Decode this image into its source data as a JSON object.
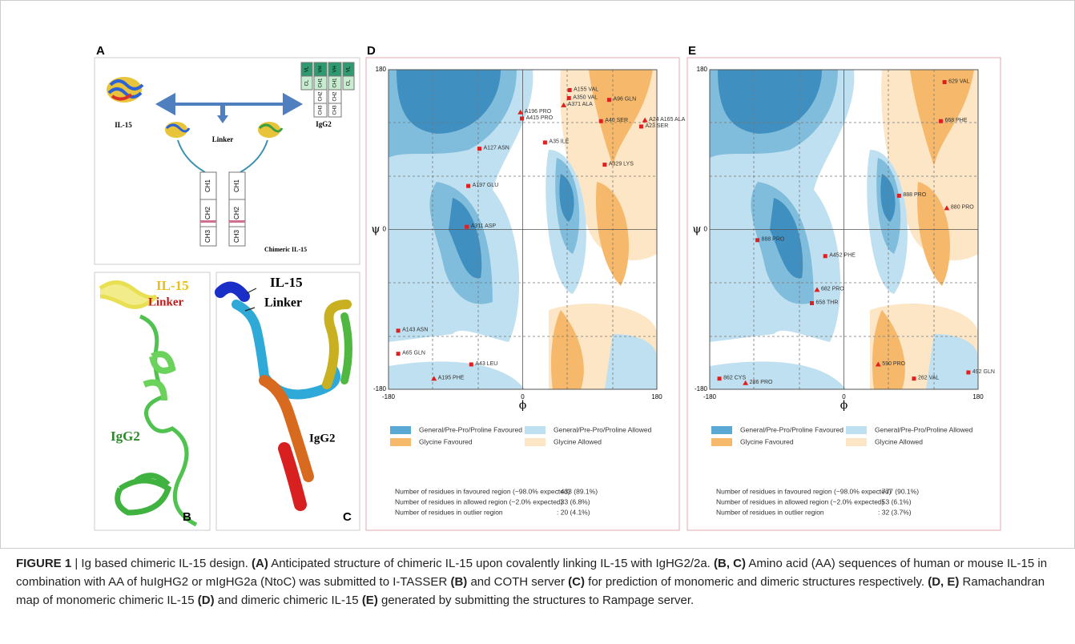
{
  "panel_a": {
    "letter": "A",
    "il15": "IL-15",
    "igg2": "IgG2",
    "linker": "Linker",
    "chimeric": "Chimeric IL-15",
    "chimeric_domains": [
      "CH1",
      "CH2",
      "CH3"
    ],
    "igg2_heavy": [
      "VH",
      "CH1",
      "CH2",
      "CH3"
    ],
    "igg2_light": [
      "VL",
      "CL"
    ]
  },
  "panel_b": {
    "letter": "B",
    "il15": "IL-15",
    "linker": "Linker",
    "igg2": "IgG2"
  },
  "panel_c": {
    "letter": "C",
    "il15": "IL-15",
    "linker": "Linker",
    "igg2": "IgG2"
  },
  "plots": [
    {
      "letter": "D",
      "psi_label": "ψ",
      "phi_label": "ϕ",
      "ticks": [
        -180,
        0,
        180
      ],
      "outliers": [
        {
          "label": "A155 VAL",
          "phi": 63,
          "psi": 157,
          "marker": "square"
        },
        {
          "label": "A350 VAL",
          "phi": 62,
          "psi": 148,
          "marker": "square"
        },
        {
          "label": "A96 GLN",
          "phi": 116,
          "psi": 146,
          "marker": "square"
        },
        {
          "label": "A371 ALA",
          "phi": 55,
          "psi": 140,
          "marker": "triangle"
        },
        {
          "label": "A196 PRO",
          "phi": -3,
          "psi": 132,
          "marker": "triangle"
        },
        {
          "label": "A415 PRO",
          "phi": -1,
          "psi": 125,
          "marker": "square"
        },
        {
          "label": "A40 SER",
          "phi": 105,
          "psi": 122,
          "marker": "square"
        },
        {
          "label": "A24 A165 ALA",
          "phi": 164,
          "psi": 123,
          "marker": "triangle"
        },
        {
          "label": "A23 SER",
          "phi": 159,
          "psi": 116,
          "marker": "square"
        },
        {
          "label": "A127 ASN",
          "phi": -58,
          "psi": 91,
          "marker": "square"
        },
        {
          "label": "A35 ILE",
          "phi": 30,
          "psi": 98,
          "marker": "square"
        },
        {
          "label": "A329 LYS",
          "phi": 110,
          "psi": 73,
          "marker": "square"
        },
        {
          "label": "A197 GLU",
          "phi": -73,
          "psi": 49,
          "marker": "square"
        },
        {
          "label": "A311 ASP",
          "phi": -75,
          "psi": 3,
          "marker": "square"
        },
        {
          "label": "A143 ASN",
          "phi": -167,
          "psi": -114,
          "marker": "square"
        },
        {
          "label": "A65 GLN",
          "phi": -167,
          "psi": -140,
          "marker": "square"
        },
        {
          "label": "A43 LEU",
          "phi": -69,
          "psi": -152,
          "marker": "square"
        },
        {
          "label": "A195 PHE",
          "phi": -119,
          "psi": -168,
          "marker": "triangle"
        }
      ],
      "legend": [
        "General/Pre-Pro/Proline Favoured",
        "General/Pre-Pro/Proline Allowed",
        "Glycine Favoured",
        "Glycine Allowed"
      ],
      "stats": [
        {
          "label": "Number of residues in favoured region (~98.0% expected)",
          "value": ": 433  (89.1%)"
        },
        {
          "label": "Number of residues in allowed region (~2.0% expected)",
          "value": ": 33  (6.8%)"
        },
        {
          "label": "Number of residues in outlier region",
          "value": ": 20  (4.1%)"
        }
      ]
    },
    {
      "letter": "E",
      "psi_label": "ψ",
      "phi_label": "ϕ",
      "ticks": [
        -180,
        0,
        180
      ],
      "outliers": [
        {
          "label": "629 VAL",
          "phi": 135,
          "psi": 166,
          "marker": "square"
        },
        {
          "label": "668 PHE",
          "phi": 130,
          "psi": 122,
          "marker": "square"
        },
        {
          "label": "888 PRO",
          "phi": 74,
          "psi": 38,
          "marker": "square"
        },
        {
          "label": "880 PRO",
          "phi": 138,
          "psi": 24,
          "marker": "triangle"
        },
        {
          "label": "888 PRO",
          "phi": -116,
          "psi": -12,
          "marker": "square"
        },
        {
          "label": "A452 PHE",
          "phi": -25,
          "psi": -30,
          "marker": "square"
        },
        {
          "label": "682 PRO",
          "phi": -36,
          "psi": -68,
          "marker": "triangle"
        },
        {
          "label": "658 THR",
          "phi": -43,
          "psi": -83,
          "marker": "square"
        },
        {
          "label": "590 PRO",
          "phi": 46,
          "psi": -152,
          "marker": "triangle"
        },
        {
          "label": "862 CYS",
          "phi": -167,
          "psi": -168,
          "marker": "square"
        },
        {
          "label": "286 PRO",
          "phi": -132,
          "psi": -173,
          "marker": "triangle"
        },
        {
          "label": "262 VAL",
          "phi": 94,
          "psi": -168,
          "marker": "square"
        },
        {
          "label": "492 GLN",
          "phi": 167,
          "psi": -161,
          "marker": "square"
        }
      ],
      "legend": [
        "General/Pre-Pro/Proline Favoured",
        "General/Pre-Pro/Proline Allowed",
        "Glycine Favoured",
        "Glycine Allowed"
      ],
      "stats": [
        {
          "label": "Number of residues in favoured region (~98.0% expected)",
          "value": ": 777  (90.1%)"
        },
        {
          "label": "Number of residues in allowed region (~2.0% expected)",
          "value": ": 53  (6.1%)"
        },
        {
          "label": "Number of residues in outlier region",
          "value": ": 32  (3.7%)"
        }
      ]
    }
  ],
  "caption": [
    {
      "text": "FIGURE 1",
      "bold": true
    },
    {
      "text": " | Ig based chimeric IL-15 design. ",
      "bold": false
    },
    {
      "text": "(A)",
      "bold": true
    },
    {
      "text": " Anticipated structure of chimeric IL-15 upon covalently linking IL-15 with IgHG2/2a. ",
      "bold": false
    },
    {
      "text": "(B, C)",
      "bold": true
    },
    {
      "text": " Amino acid (AA) sequences of human or mouse IL-15 in combination with AA of huIgHG2 or mIgHG2a (NtoC) was submitted to I-TASSER ",
      "bold": false
    },
    {
      "text": "(B)",
      "bold": true
    },
    {
      "text": " and COTH server ",
      "bold": false
    },
    {
      "text": "(C)",
      "bold": true
    },
    {
      "text": " for prediction of monomeric and dimeric structures respectively. ",
      "bold": false
    },
    {
      "text": "(D, E)",
      "bold": true
    },
    {
      "text": " Ramachandran map of monomeric chimeric IL-15 ",
      "bold": false
    },
    {
      "text": "(D)",
      "bold": true
    },
    {
      "text": " and dimeric chimeric IL-15 ",
      "bold": false
    },
    {
      "text": "(E)",
      "bold": true
    },
    {
      "text": " generated by submitting the structures to Rampage server.",
      "bold": false
    }
  ]
}
